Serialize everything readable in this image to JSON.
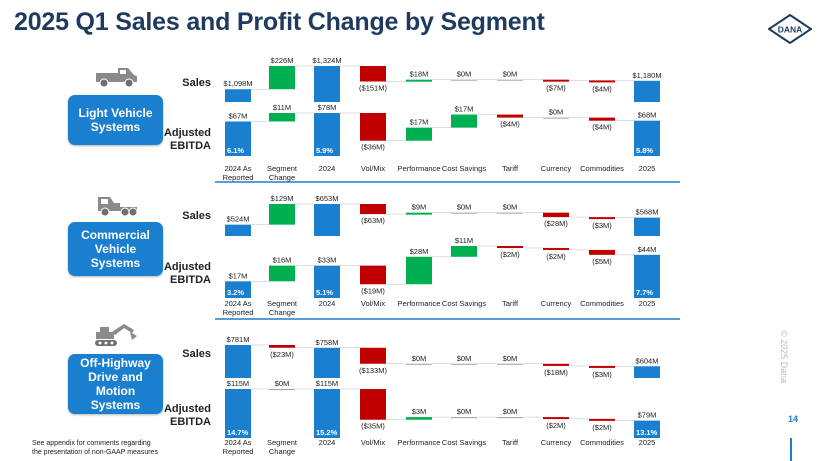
{
  "title": "2025 Q1 Sales and Profit Change by Segment",
  "logo_text": "DANA",
  "footnote_line1": "See appendix for comments regarding",
  "footnote_line2": "the presentation of non-GAAP measures",
  "copyright": "© 2025 Dana",
  "page_number": "14",
  "colors": {
    "blue": "#1b7fd0",
    "green": "#00b050",
    "red": "#c00000",
    "divider": "#1b7fd0"
  },
  "row_labels": {
    "sales": "Sales",
    "ebitda_line1": "Adjusted",
    "ebitda_line2": "EBITDA"
  },
  "categories": [
    {
      "l1": "2024 As",
      "l2": "Reported"
    },
    {
      "l1": "Segment",
      "l2": "Change"
    },
    {
      "l1": "2024",
      "l2": ""
    },
    {
      "l1": "Vol/Mix",
      "l2": ""
    },
    {
      "l1": "Performance",
      "l2": ""
    },
    {
      "l1": "Cost Savings",
      "l2": ""
    },
    {
      "l1": "Tariff",
      "l2": ""
    },
    {
      "l1": "Currency",
      "l2": ""
    },
    {
      "l1": "Commodities",
      "l2": ""
    },
    {
      "l1": "2025",
      "l2": ""
    }
  ],
  "segments": [
    {
      "name": "Light Vehicle Systems",
      "name_lines": [
        "Light Vehicle",
        "Systems"
      ],
      "icon": "pickup-truck-icon"
    },
    {
      "name": "Commercial Vehicle Systems",
      "name_lines": [
        "Commercial",
        "Vehicle",
        "Systems"
      ],
      "icon": "semi-truck-icon"
    },
    {
      "name": "Off-Highway Drive and Motion Systems",
      "name_lines": [
        "Off-Highway",
        "Drive and",
        "Motion",
        "Systems"
      ],
      "icon": "excavator-icon"
    }
  ],
  "chart_data": {
    "type": "bar",
    "subtype": "waterfall",
    "title": "2025 Q1 Sales and Profit Change by Segment",
    "categories": [
      "2024 As Reported",
      "Segment Change",
      "2024",
      "Vol/Mix",
      "Performance",
      "Cost Savings",
      "Tariff",
      "Currency",
      "Commodities",
      "2025"
    ],
    "units": "$M",
    "panels": [
      {
        "segment": "Light Vehicle Systems",
        "metric": "Sales",
        "values": [
          1098,
          226,
          1324,
          -151,
          18,
          0,
          0,
          -7,
          -4,
          1180
        ],
        "labels": [
          "$1,098M",
          "$226M",
          "$1,324M",
          "($151M)",
          "$18M",
          "$0M",
          "$0M",
          "($7M)",
          "($4M)",
          "$1,180M"
        ],
        "margins": []
      },
      {
        "segment": "Light Vehicle Systems",
        "metric": "Adjusted EBITDA",
        "values": [
          67,
          11,
          78,
          -36,
          17,
          17,
          -4,
          0,
          -4,
          68
        ],
        "labels": [
          "$67M",
          "$11M",
          "$78M",
          "($36M)",
          "$17M",
          "$17M",
          "($4M)",
          "$0M",
          "($4M)",
          "$68M"
        ],
        "margins": [
          "6.1%",
          null,
          "5.9%",
          null,
          null,
          null,
          null,
          null,
          null,
          "5.8%"
        ]
      },
      {
        "segment": "Commercial Vehicle Systems",
        "metric": "Sales",
        "values": [
          524,
          129,
          653,
          -63,
          9,
          0,
          0,
          -28,
          -3,
          568
        ],
        "labels": [
          "$524M",
          "$129M",
          "$653M",
          "($63M)",
          "$9M",
          "$0M",
          "$0M",
          "($28M)",
          "($3M)",
          "$568M"
        ],
        "margins": []
      },
      {
        "segment": "Commercial Vehicle Systems",
        "metric": "Adjusted EBITDA",
        "values": [
          17,
          16,
          33,
          -19,
          28,
          11,
          -2,
          -2,
          -5,
          44
        ],
        "labels": [
          "$17M",
          "$16M",
          "$33M",
          "($19M)",
          "$28M",
          "$11M",
          "($2M)",
          "($2M)",
          "($5M)",
          "$44M"
        ],
        "margins": [
          "3.2%",
          null,
          "5.1%",
          null,
          null,
          null,
          null,
          null,
          null,
          "7.7%"
        ]
      },
      {
        "segment": "Off-Highway Drive and Motion Systems",
        "metric": "Sales",
        "values": [
          781,
          -23,
          758,
          -133,
          0,
          0,
          0,
          -18,
          -3,
          604
        ],
        "labels": [
          "$781M",
          "($23M)",
          "$758M",
          "($133M)",
          "$0M",
          "$0M",
          "$0M",
          "($18M)",
          "($3M)",
          "$604M"
        ],
        "margins": []
      },
      {
        "segment": "Off-Highway Drive and Motion Systems",
        "metric": "Adjusted EBITDA",
        "values": [
          115,
          0,
          115,
          -35,
          3,
          0,
          0,
          -2,
          -2,
          79
        ],
        "labels": [
          "$115M",
          "$0M",
          "$115M",
          "($35M)",
          "$3M",
          "$0M",
          "$0M",
          "($2M)",
          "($2M)",
          "$79M"
        ],
        "margins": [
          "14.7%",
          null,
          "15.2%",
          null,
          null,
          null,
          null,
          null,
          null,
          "13.1%"
        ]
      }
    ]
  }
}
